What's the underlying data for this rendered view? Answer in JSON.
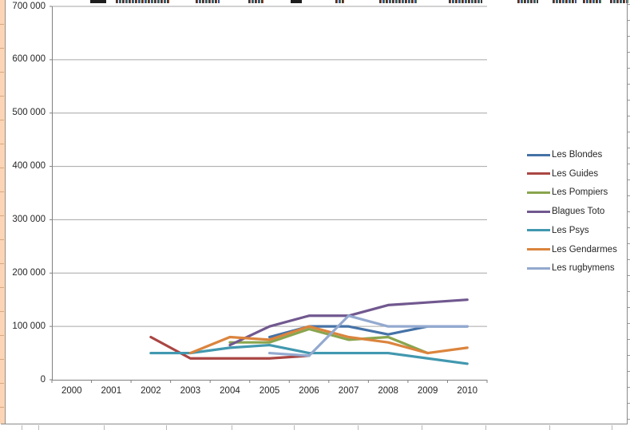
{
  "chart_data": {
    "type": "line",
    "x": [
      "2000",
      "2001",
      "2002",
      "2003",
      "2004",
      "2005",
      "2006",
      "2007",
      "2008",
      "2009",
      "2010"
    ],
    "series": [
      {
        "name": "Les Blondes",
        "color": "#4572A7",
        "values": [
          null,
          null,
          null,
          null,
          null,
          80000,
          100000,
          100000,
          85000,
          100000,
          100000
        ]
      },
      {
        "name": "Les Guides",
        "color": "#AA4643",
        "values": [
          null,
          null,
          80000,
          40000,
          40000,
          40000,
          45000,
          null,
          null,
          null,
          null
        ]
      },
      {
        "name": "Les Pompiers",
        "color": "#89A54E",
        "values": [
          null,
          null,
          null,
          null,
          70000,
          70000,
          95000,
          75000,
          80000,
          50000,
          null
        ]
      },
      {
        "name": "Blagues Toto",
        "color": "#71588F",
        "values": [
          null,
          null,
          null,
          null,
          65000,
          100000,
          120000,
          120000,
          140000,
          145000,
          150000
        ]
      },
      {
        "name": "Les Psys",
        "color": "#4198AF",
        "values": [
          null,
          null,
          50000,
          50000,
          60000,
          65000,
          50000,
          50000,
          50000,
          40000,
          30000
        ]
      },
      {
        "name": "Les Gendarmes",
        "color": "#DB843D",
        "values": [
          null,
          null,
          null,
          50000,
          80000,
          75000,
          100000,
          80000,
          70000,
          50000,
          60000
        ]
      },
      {
        "name": "Les rugbymens",
        "color": "#93A9CF",
        "values": [
          null,
          null,
          null,
          null,
          null,
          50000,
          45000,
          120000,
          100000,
          100000,
          100000
        ]
      }
    ],
    "title": "",
    "xlabel": "",
    "ylabel": "",
    "ylim": [
      0,
      700000
    ],
    "ytick_step": 100000,
    "ytick_labels": [
      "0",
      "100 000",
      "200 000",
      "300 000",
      "400 000",
      "500 000",
      "600 000",
      "700 000"
    ],
    "grid": true,
    "legend_position": "right",
    "gridline_color": "#A6A6A6",
    "axis_color": "#808080",
    "tick_label_color": "#262626"
  },
  "spreadsheet": {
    "left_strip_color": "#FBD5B5"
  }
}
